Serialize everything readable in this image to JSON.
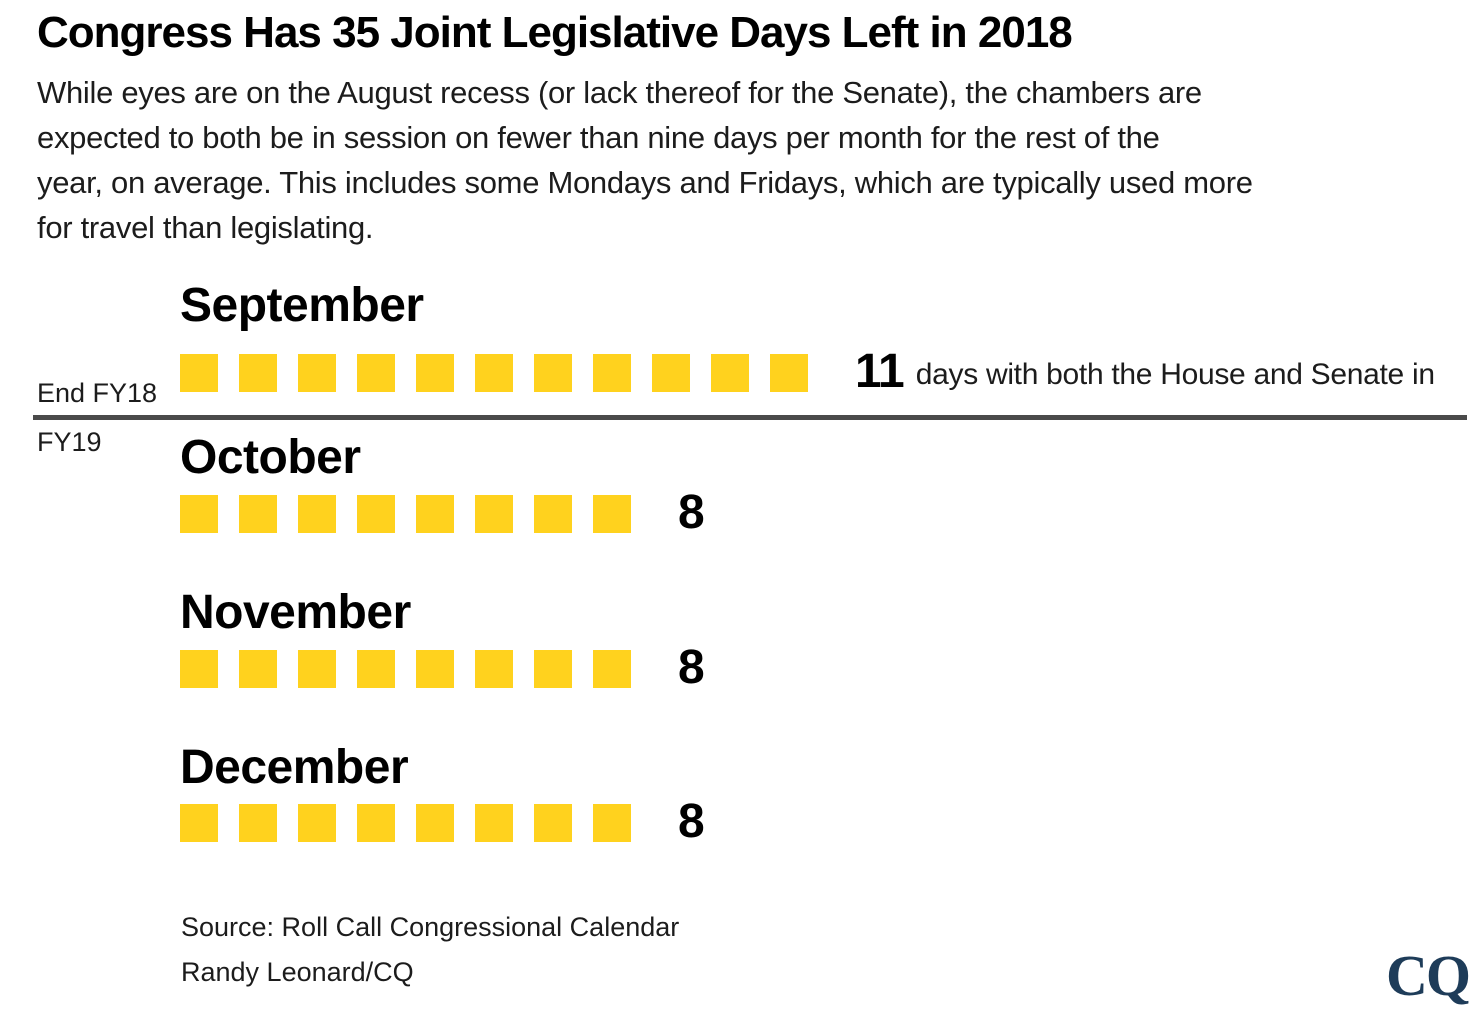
{
  "title": "Congress Has 35 Joint Legislative Days Left in 2018",
  "subtitle_lines": [
    "While eyes are on the August recess (or lack thereof for the Senate), the chambers are",
    "expected to both be in session on fewer than nine days per month for the rest of the",
    "year, on average. This includes some Mondays and Fridays, which are typically used more",
    "for travel than legislating."
  ],
  "chart_data": {
    "type": "bar",
    "mark": "one-square-per-day",
    "categories": [
      "September",
      "October",
      "November",
      "December"
    ],
    "values": [
      11,
      8,
      8,
      8
    ],
    "total": 35,
    "title": "Congress Has 35 Joint Legislative Days Left in 2018",
    "value_annotation_september": "days with both the House and Senate in",
    "fiscal_year_break": {
      "after": "September",
      "end_label": "End FY18",
      "start_label": "FY19"
    },
    "legend_position": "none",
    "grid": false
  },
  "months": [
    {
      "name": "September",
      "days": 11,
      "value_label": "11",
      "suffix": "days with both the House and Senate in"
    },
    {
      "name": "October",
      "days": 8,
      "value_label": "8",
      "suffix": ""
    },
    {
      "name": "November",
      "days": 8,
      "value_label": "8",
      "suffix": ""
    },
    {
      "name": "December",
      "days": 8,
      "value_label": "8",
      "suffix": ""
    }
  ],
  "fiscal_divider": {
    "end_label": "End FY18",
    "start_label": "FY19"
  },
  "footer": {
    "source": "Source: Roll Call Congressional Calendar",
    "credit": "Randy Leonard/CQ",
    "logo": "CQ"
  },
  "colors": {
    "square_yellow": "#FFD21E",
    "divider_gray": "#4a4a4a",
    "logo_navy": "#1e3c59",
    "text_black": "#000000"
  }
}
